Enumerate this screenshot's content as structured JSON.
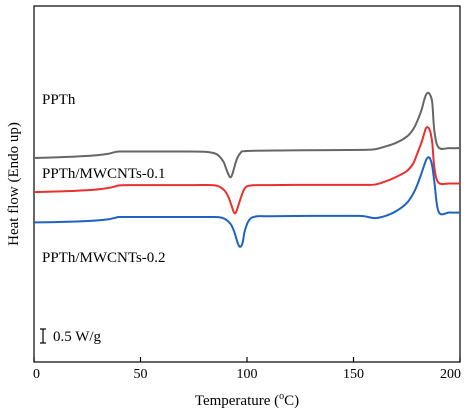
{
  "chart_data": {
    "type": "line",
    "xlabel_main": "Temperature (",
    "xlabel_sup": "o",
    "xlabel_end": "C)",
    "ylabel": "Heat flow (Endo up)",
    "xlim": [
      0,
      200
    ],
    "xticks": [
      "0",
      "50",
      "100",
      "150",
      "200"
    ],
    "scale_bar_label": "0.5 W/g",
    "grid": false,
    "series": [
      {
        "name": "PPTh",
        "color": "#666666",
        "x": [
          0,
          10,
          20,
          30,
          35,
          38,
          40,
          45,
          60,
          70,
          80,
          85,
          87,
          89,
          90,
          91,
          92,
          93,
          95,
          97,
          100,
          120,
          140,
          155,
          160,
          165,
          170,
          175,
          178,
          180,
          182,
          183,
          184,
          185,
          186,
          187,
          188,
          190,
          195,
          200
        ],
        "y": [
          0.93,
          0.95,
          0.98,
          1.03,
          1.08,
          1.14,
          1.16,
          1.16,
          1.16,
          1.16,
          1.15,
          1.09,
          0.99,
          0.79,
          0.59,
          0.39,
          0.25,
          0.32,
          0.84,
          1.11,
          1.18,
          1.2,
          1.21,
          1.22,
          1.24,
          1.34,
          1.47,
          1.69,
          1.95,
          2.26,
          2.66,
          2.95,
          3.18,
          3.26,
          3.18,
          2.89,
          1.87,
          1.3,
          1.28,
          1.28
        ]
      },
      {
        "name": "PPTh/MWCNTs-0.1",
        "color": "#e8302e",
        "x": [
          0,
          10,
          20,
          30,
          35,
          38,
          40,
          45,
          60,
          75,
          85,
          89,
          91,
          92,
          93,
          94,
          95,
          97,
          99,
          102,
          110,
          130,
          150,
          155,
          160,
          165,
          170,
          175,
          178,
          180,
          182,
          183,
          184,
          185,
          186,
          187,
          188,
          190,
          195,
          200
        ],
        "y": [
          -0.29,
          -0.27,
          -0.24,
          -0.19,
          -0.14,
          -0.09,
          -0.05,
          -0.04,
          -0.04,
          -0.04,
          -0.05,
          -0.2,
          -0.42,
          -0.61,
          -0.83,
          -1.03,
          -0.98,
          -0.52,
          -0.15,
          -0.05,
          -0.04,
          -0.03,
          -0.03,
          -0.03,
          -0.02,
          0.09,
          0.25,
          0.46,
          0.73,
          1.1,
          1.5,
          1.75,
          1.99,
          2.02,
          1.88,
          1.46,
          0.56,
          0.04,
          0.02,
          0.02
        ]
      },
      {
        "name": "PPTh/MWCNTs-0.2",
        "color": "#1f63c2",
        "x": [
          0,
          10,
          20,
          30,
          35,
          38,
          40,
          45,
          60,
          80,
          88,
          92,
          94,
          95,
          96,
          97,
          98,
          99,
          101,
          104,
          110,
          130,
          150,
          155,
          160,
          165,
          170,
          175,
          178,
          180,
          182,
          184,
          185,
          186,
          187,
          188,
          190,
          195,
          200
        ],
        "y": [
          -1.37,
          -1.36,
          -1.34,
          -1.3,
          -1.26,
          -1.21,
          -1.18,
          -1.18,
          -1.18,
          -1.18,
          -1.2,
          -1.4,
          -1.7,
          -1.95,
          -2.18,
          -2.24,
          -2.08,
          -1.66,
          -1.29,
          -1.16,
          -1.15,
          -1.14,
          -1.14,
          -1.15,
          -1.22,
          -1.14,
          -0.97,
          -0.68,
          -0.35,
          -0.02,
          0.4,
          0.84,
          0.95,
          0.9,
          0.62,
          0.06,
          -1.0,
          -1.02,
          -1.02
        ]
      }
    ]
  }
}
